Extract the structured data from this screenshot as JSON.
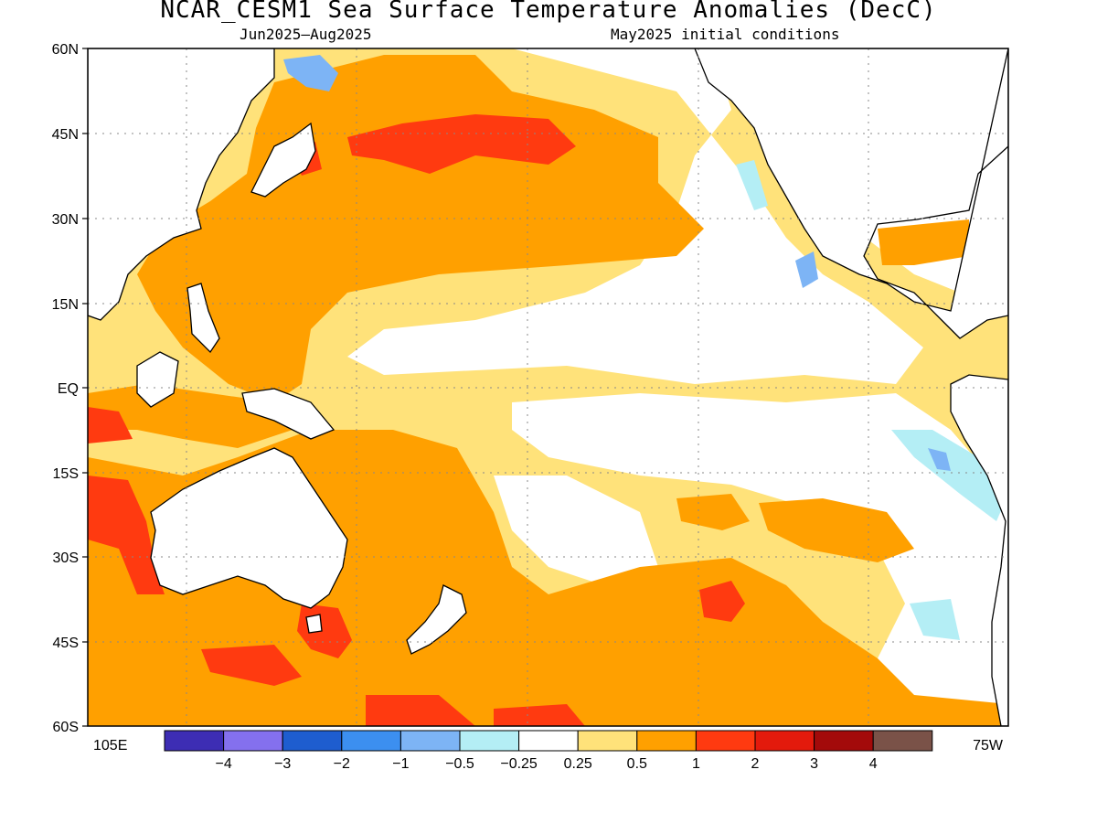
{
  "title": "NCAR_CESM1 Sea Surface Temperature Anomalies (DecC)",
  "subtitle_left": "Jun2025–Aug2025",
  "subtitle_right": "May2025 initial conditions",
  "lat_labels": [
    "60N",
    "45N",
    "30N",
    "15N",
    "EQ",
    "15S",
    "30S",
    "45S",
    "60S"
  ],
  "lon_labels": {
    "left": "105E",
    "right": "75W"
  },
  "colorbar": {
    "colors": [
      "#3d2db4",
      "#8470ee",
      "#1e5dcf",
      "#3c8ff0",
      "#7db4f5",
      "#b4eef5",
      "#ffffff",
      "#ffe27a",
      "#ffa000",
      "#ff3a10",
      "#e31a0c",
      "#a30a0a",
      "#7a5248"
    ],
    "labels": [
      "−4",
      "−3",
      "−2",
      "−1",
      "−0.5",
      "−0.25",
      "0.25",
      "0.5",
      "1",
      "2",
      "3",
      "4"
    ]
  },
  "colors": {
    "lightyellow": "#ffe27a",
    "orange": "#ffa000",
    "redorange": "#ff3a10",
    "red": "#e31a0c",
    "lightblue": "#b4eef5",
    "midblue": "#7db4f5",
    "blue": "#3c8ff0"
  }
}
